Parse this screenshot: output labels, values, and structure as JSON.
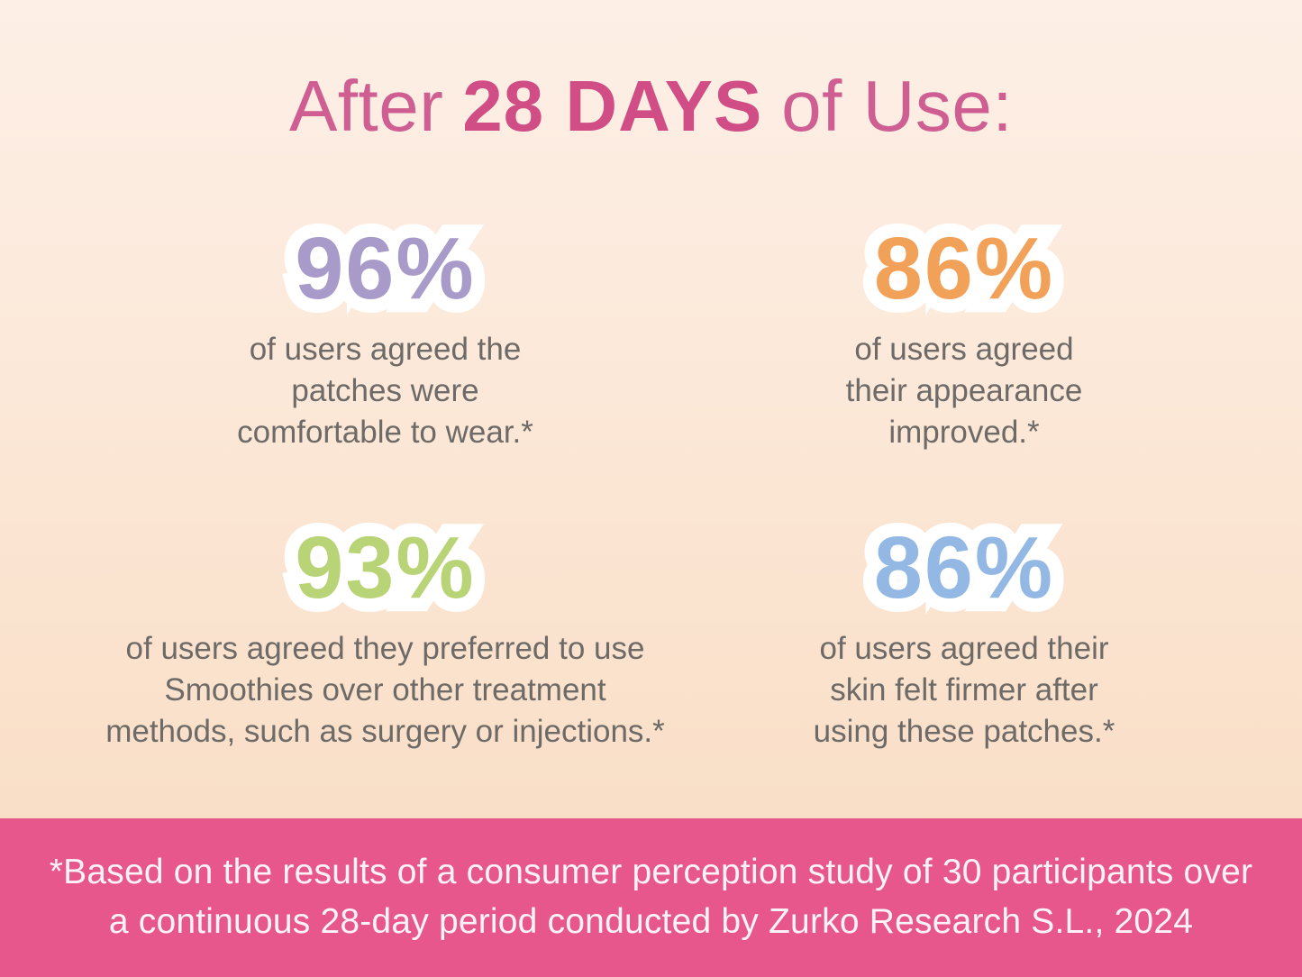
{
  "title": {
    "prefix": "After",
    "highlight": "28 DAYS",
    "suffix": "of Use:"
  },
  "stats": [
    {
      "id": "comfort",
      "value": "96%",
      "color": "#a89bc9",
      "caption": "of users agreed the\npatches were\ncomfortable to wear.*"
    },
    {
      "id": "appearance",
      "value": "86%",
      "color": "#f2a159",
      "caption": "of users agreed\ntheir appearance\nimproved.*"
    },
    {
      "id": "preference",
      "value": "93%",
      "color": "#b9d377",
      "caption": "of users agreed they preferred to use\nSmoothies over other treatment\nmethods, such as surgery or injections.*"
    },
    {
      "id": "firmness",
      "value": "86%",
      "color": "#93b8e4",
      "caption": "of users agreed their\nskin felt firmer after\nusing these patches.*"
    }
  ],
  "footnote": "*Based on the results of a consumer perception study of 30 participants over\na continuous 28-day period conducted by Zurko Research S.L., 2024",
  "colors": {
    "title_regular": "#cf5e92",
    "title_highlight": "#d04d85",
    "caption_text": "#6d6a67",
    "footer_background": "#e7578c",
    "footer_text": "#fdf3f6",
    "background_top": "#fdefe6",
    "background_bottom": "#f8dbc0"
  }
}
